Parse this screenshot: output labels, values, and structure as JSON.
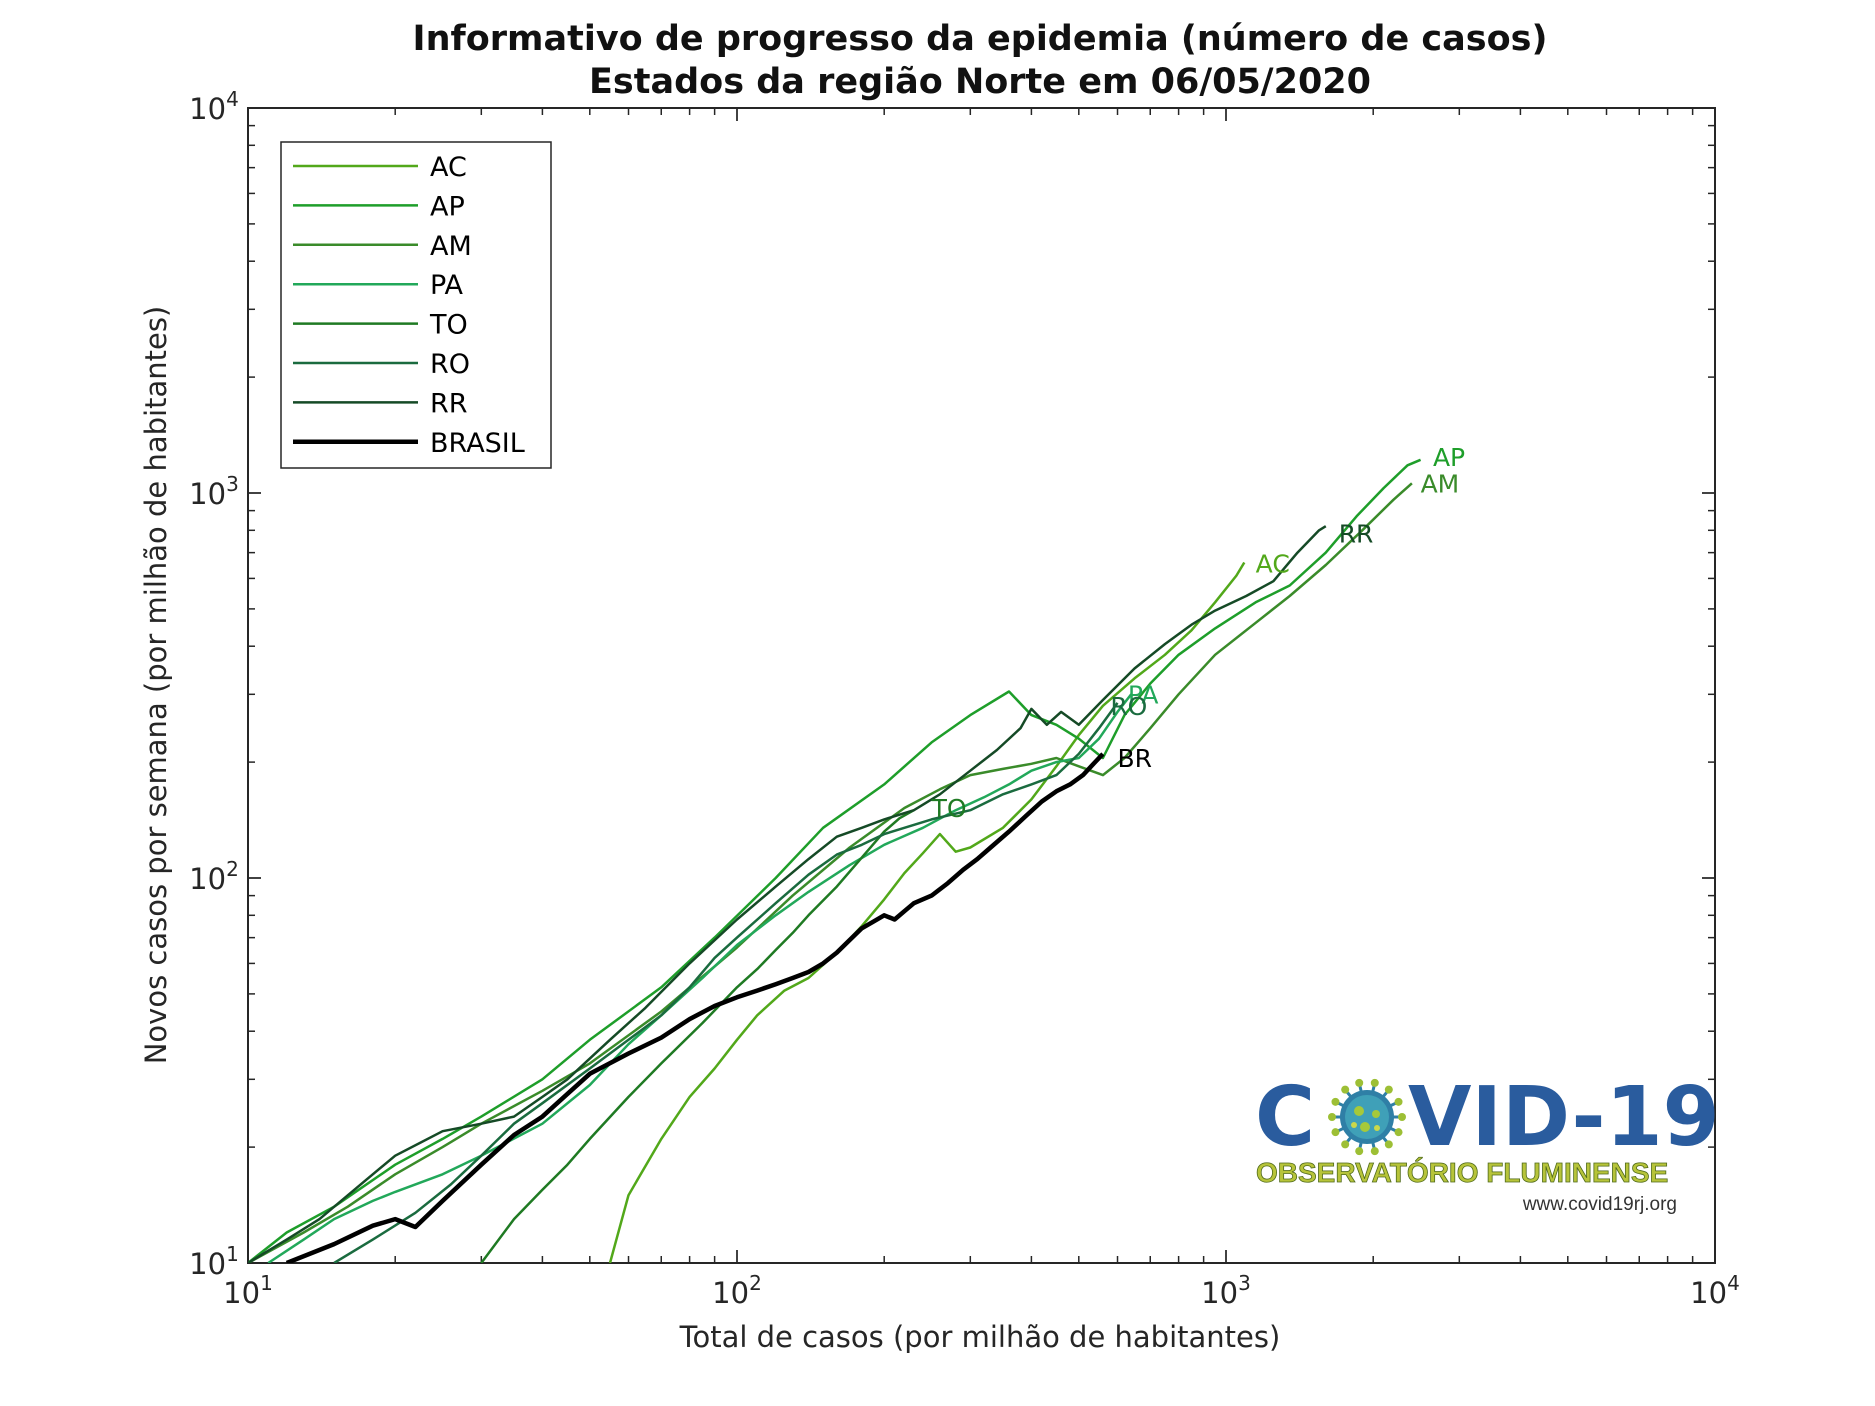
{
  "chart_data": {
    "type": "line",
    "title": "Informativo de progresso da epidemia (número de casos)",
    "subtitle": "Estados da região Norte  em 06/05/2020",
    "xlabel": "Total de casos (por milhão de habitantes)",
    "ylabel": "Novos casos por semana (por milhão de habitantes)",
    "xscale": "log",
    "yscale": "log",
    "xlim": [
      10,
      10000
    ],
    "ylim": [
      10,
      10000
    ],
    "x_ticks": [
      {
        "base": "10",
        "exp": "1"
      },
      {
        "base": "10",
        "exp": "2"
      },
      {
        "base": "10",
        "exp": "3"
      },
      {
        "base": "10",
        "exp": "4"
      }
    ],
    "y_ticks": [
      {
        "base": "10",
        "exp": "1"
      },
      {
        "base": "10",
        "exp": "2"
      },
      {
        "base": "10",
        "exp": "3"
      },
      {
        "base": "10",
        "exp": "4"
      }
    ],
    "legend_placement": "top-left",
    "grid": false,
    "series": [
      {
        "name": "AC",
        "color": "#52a81a",
        "width": 2.5,
        "points": [
          [
            55,
            10
          ],
          [
            60,
            15
          ],
          [
            70,
            21
          ],
          [
            80,
            27
          ],
          [
            90,
            32
          ],
          [
            100,
            38
          ],
          [
            110,
            44
          ],
          [
            125,
            51
          ],
          [
            140,
            55
          ],
          [
            160,
            64
          ],
          [
            180,
            75
          ],
          [
            200,
            88
          ],
          [
            220,
            103
          ],
          [
            240,
            116
          ],
          [
            260,
            130
          ],
          [
            280,
            117
          ],
          [
            300,
            120
          ],
          [
            350,
            135
          ],
          [
            400,
            160
          ],
          [
            450,
            195
          ],
          [
            500,
            235
          ],
          [
            560,
            280
          ],
          [
            650,
            330
          ],
          [
            750,
            380
          ],
          [
            850,
            440
          ],
          [
            950,
            520
          ],
          [
            1050,
            610
          ],
          [
            1090,
            660
          ]
        ],
        "end_label": "AC"
      },
      {
        "name": "AP",
        "color": "#1e9e2a",
        "width": 2.5,
        "points": [
          [
            10,
            10
          ],
          [
            12,
            12
          ],
          [
            15,
            14
          ],
          [
            20,
            18
          ],
          [
            25,
            21
          ],
          [
            30,
            24
          ],
          [
            40,
            30
          ],
          [
            50,
            38
          ],
          [
            70,
            52
          ],
          [
            90,
            70
          ],
          [
            120,
            100
          ],
          [
            150,
            135
          ],
          [
            200,
            175
          ],
          [
            250,
            225
          ],
          [
            300,
            265
          ],
          [
            360,
            305
          ],
          [
            400,
            265
          ],
          [
            450,
            250
          ],
          [
            500,
            230
          ],
          [
            560,
            205
          ],
          [
            620,
            265
          ],
          [
            700,
            320
          ],
          [
            800,
            380
          ],
          [
            950,
            445
          ],
          [
            1150,
            520
          ],
          [
            1350,
            575
          ],
          [
            1600,
            700
          ],
          [
            1850,
            870
          ],
          [
            2100,
            1030
          ],
          [
            2350,
            1180
          ],
          [
            2500,
            1220
          ]
        ],
        "end_label": "AP"
      },
      {
        "name": "AM",
        "color": "#3a8b2a",
        "width": 2.5,
        "points": [
          [
            10,
            10
          ],
          [
            13,
            12
          ],
          [
            16,
            14
          ],
          [
            20,
            17
          ],
          [
            25,
            20
          ],
          [
            30,
            23
          ],
          [
            40,
            28
          ],
          [
            50,
            33
          ],
          [
            70,
            45
          ],
          [
            100,
            66
          ],
          [
            130,
            90
          ],
          [
            170,
            120
          ],
          [
            220,
            152
          ],
          [
            260,
            170
          ],
          [
            300,
            185
          ],
          [
            350,
            192
          ],
          [
            400,
            198
          ],
          [
            450,
            205
          ],
          [
            500,
            195
          ],
          [
            560,
            185
          ],
          [
            620,
            205
          ],
          [
            700,
            245
          ],
          [
            800,
            300
          ],
          [
            950,
            380
          ],
          [
            1150,
            460
          ],
          [
            1350,
            540
          ],
          [
            1600,
            650
          ],
          [
            1900,
            800
          ],
          [
            2200,
            960
          ],
          [
            2400,
            1060
          ]
        ],
        "end_label": "AM"
      },
      {
        "name": "PA",
        "color": "#22a85a",
        "width": 2.5,
        "points": [
          [
            11,
            10
          ],
          [
            13,
            11.5
          ],
          [
            15,
            13
          ],
          [
            18,
            14.5
          ],
          [
            20,
            15.3
          ],
          [
            25,
            17
          ],
          [
            30,
            19
          ],
          [
            40,
            23
          ],
          [
            50,
            29
          ],
          [
            60,
            37
          ],
          [
            70,
            44
          ],
          [
            85,
            55
          ],
          [
            100,
            67
          ],
          [
            120,
            80
          ],
          [
            140,
            92
          ],
          [
            170,
            108
          ],
          [
            200,
            122
          ],
          [
            240,
            135
          ],
          [
            280,
            150
          ],
          [
            320,
            162
          ],
          [
            360,
            175
          ],
          [
            400,
            190
          ],
          [
            450,
            200
          ],
          [
            500,
            205
          ],
          [
            550,
            230
          ],
          [
            600,
            270
          ],
          [
            640,
            300
          ]
        ],
        "end_label": "PA"
      },
      {
        "name": "TO",
        "color": "#1f7a23",
        "width": 2.5,
        "points": [
          [
            30,
            10
          ],
          [
            35,
            13
          ],
          [
            40,
            15.5
          ],
          [
            45,
            18
          ],
          [
            50,
            21
          ],
          [
            60,
            27
          ],
          [
            70,
            33
          ],
          [
            85,
            42
          ],
          [
            100,
            52
          ],
          [
            110,
            58
          ],
          [
            120,
            65
          ],
          [
            130,
            72
          ],
          [
            140,
            80
          ],
          [
            160,
            95
          ],
          [
            180,
            113
          ],
          [
            200,
            132
          ],
          [
            215,
            143
          ],
          [
            230,
            150
          ]
        ],
        "end_label": "TO"
      },
      {
        "name": "RO",
        "color": "#1a6b3f",
        "width": 2.5,
        "points": [
          [
            15,
            10
          ],
          [
            18,
            11.5
          ],
          [
            22,
            13.5
          ],
          [
            26,
            16
          ],
          [
            30,
            19
          ],
          [
            35,
            23
          ],
          [
            40,
            26
          ],
          [
            50,
            32
          ],
          [
            60,
            38
          ],
          [
            70,
            44
          ],
          [
            80,
            52
          ],
          [
            90,
            62
          ],
          [
            100,
            70
          ],
          [
            120,
            86
          ],
          [
            140,
            102
          ],
          [
            160,
            115
          ],
          [
            180,
            122
          ],
          [
            200,
            130
          ],
          [
            220,
            135
          ],
          [
            250,
            142
          ],
          [
            300,
            150
          ],
          [
            350,
            165
          ],
          [
            400,
            175
          ],
          [
            450,
            185
          ],
          [
            500,
            210
          ],
          [
            550,
            245
          ],
          [
            600,
            285
          ]
        ],
        "end_label": "RO"
      },
      {
        "name": "RR",
        "color": "#154a26",
        "width": 2.5,
        "points": [
          [
            10,
            10
          ],
          [
            12,
            11.5
          ],
          [
            14,
            13
          ],
          [
            17,
            16
          ],
          [
            20,
            19
          ],
          [
            25,
            22
          ],
          [
            30,
            23
          ],
          [
            35,
            24
          ],
          [
            40,
            27
          ],
          [
            45,
            30
          ],
          [
            55,
            38
          ],
          [
            65,
            46
          ],
          [
            80,
            60
          ],
          [
            100,
            78
          ],
          [
            120,
            95
          ],
          [
            140,
            112
          ],
          [
            160,
            128
          ],
          [
            180,
            135
          ],
          [
            200,
            142
          ],
          [
            230,
            150
          ],
          [
            260,
            165
          ],
          [
            300,
            190
          ],
          [
            340,
            215
          ],
          [
            380,
            245
          ],
          [
            400,
            275
          ],
          [
            430,
            250
          ],
          [
            460,
            270
          ],
          [
            500,
            250
          ],
          [
            560,
            290
          ],
          [
            650,
            350
          ],
          [
            750,
            405
          ],
          [
            850,
            455
          ],
          [
            950,
            495
          ],
          [
            1100,
            540
          ],
          [
            1250,
            590
          ],
          [
            1400,
            700
          ],
          [
            1550,
            800
          ],
          [
            1600,
            820
          ]
        ],
        "end_label": "RR"
      },
      {
        "name": "BRASIL",
        "color": "#000000",
        "width": 4.5,
        "points": [
          [
            12,
            10
          ],
          [
            15,
            11.2
          ],
          [
            18,
            12.5
          ],
          [
            20,
            13
          ],
          [
            22,
            12.4
          ],
          [
            25,
            14.5
          ],
          [
            30,
            18
          ],
          [
            35,
            21.5
          ],
          [
            40,
            24
          ],
          [
            45,
            27.5
          ],
          [
            50,
            31
          ],
          [
            60,
            35
          ],
          [
            70,
            38.5
          ],
          [
            80,
            43
          ],
          [
            90,
            46.5
          ],
          [
            100,
            49
          ],
          [
            110,
            51
          ],
          [
            120,
            53
          ],
          [
            130,
            55
          ],
          [
            140,
            57
          ],
          [
            150,
            60
          ],
          [
            160,
            64
          ],
          [
            170,
            69
          ],
          [
            180,
            74
          ],
          [
            190,
            77
          ],
          [
            200,
            80
          ],
          [
            210,
            78
          ],
          [
            220,
            82
          ],
          [
            230,
            86
          ],
          [
            250,
            90
          ],
          [
            270,
            97
          ],
          [
            290,
            105
          ],
          [
            310,
            112
          ],
          [
            330,
            120
          ],
          [
            360,
            132
          ],
          [
            390,
            145
          ],
          [
            420,
            158
          ],
          [
            450,
            168
          ],
          [
            480,
            175
          ],
          [
            510,
            185
          ],
          [
            540,
            200
          ],
          [
            560,
            210
          ]
        ],
        "end_label": "BR"
      }
    ],
    "end_labels": [
      {
        "text": "AP",
        "color": "#1e9e2a",
        "x": 2650,
        "y": 1240
      },
      {
        "text": "AM",
        "color": "#3a8b2a",
        "x": 2500,
        "y": 1060
      },
      {
        "text": "RR",
        "color": "#154a26",
        "x": 1700,
        "y": 785
      },
      {
        "text": "AC",
        "color": "#52a81a",
        "x": 1150,
        "y": 655
      },
      {
        "text": "PA",
        "color": "#22a85a",
        "x": 630,
        "y": 300
      },
      {
        "text": "RO",
        "color": "#1a6b3f",
        "x": 580,
        "y": 280
      },
      {
        "text": "BR",
        "color": "#000000",
        "x": 600,
        "y": 205
      },
      {
        "text": "TO",
        "color": "#1f7a23",
        "x": 250,
        "y": 152
      }
    ]
  },
  "logo": {
    "word_left": "C",
    "word_right": "VID-19",
    "subtitle": "OBSERVATÓRIO FLUMINENSE",
    "url": "www.covid19rj.org",
    "virus_icon": "coronavirus-icon",
    "primary_color": "#2a5c9e",
    "secondary_color": "#b7c43a"
  }
}
